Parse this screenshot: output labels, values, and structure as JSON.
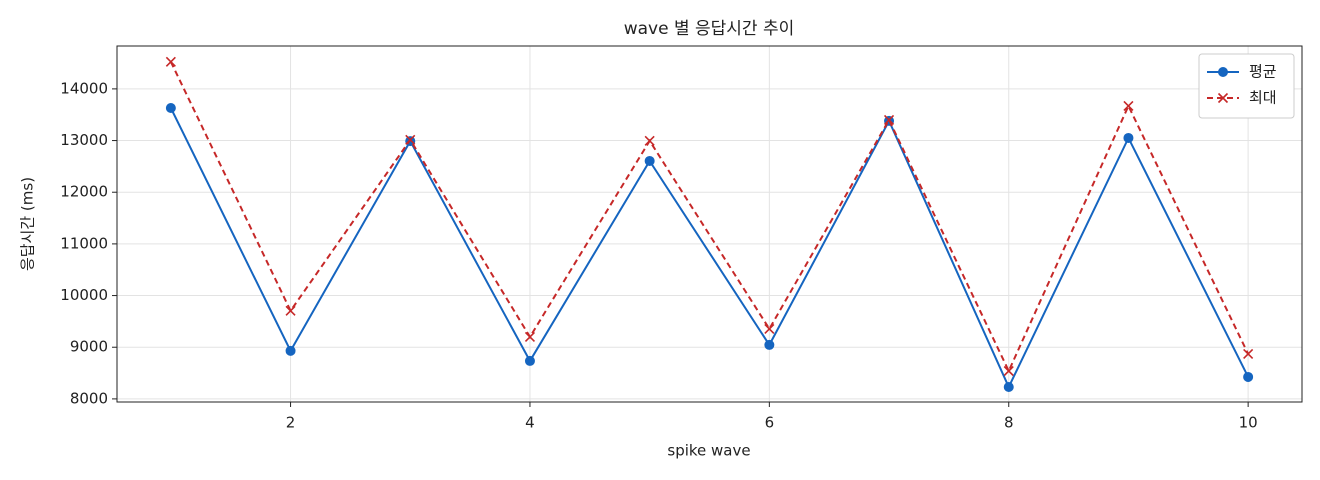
{
  "chart_data": {
    "type": "line",
    "title": "wave 별 응답시간 추이",
    "x_label": "spike wave",
    "y_label": "응답시간 (ms)",
    "x": [
      1,
      2,
      3,
      4,
      5,
      6,
      7,
      8,
      9,
      10
    ],
    "series": [
      {
        "name": "평균",
        "color": "#1565c0",
        "marker": "circle",
        "dash": false,
        "values": [
          13630,
          8930,
          12990,
          8735,
          12605,
          9045,
          13380,
          8230,
          13050,
          8425
        ]
      },
      {
        "name": "최대",
        "color": "#c62828",
        "marker": "x",
        "dash": true,
        "values": [
          14525,
          9705,
          13015,
          9200,
          12995,
          9355,
          13400,
          8540,
          13670,
          8870
        ]
      }
    ],
    "xlim": [
      0.55,
      10.45
    ],
    "ylim": [
      7940,
      14830
    ],
    "xticks": [
      2,
      4,
      6,
      8,
      10
    ],
    "yticks": [
      8000,
      9000,
      10000,
      11000,
      12000,
      13000,
      14000
    ],
    "grid": true,
    "legend": "upper right"
  }
}
